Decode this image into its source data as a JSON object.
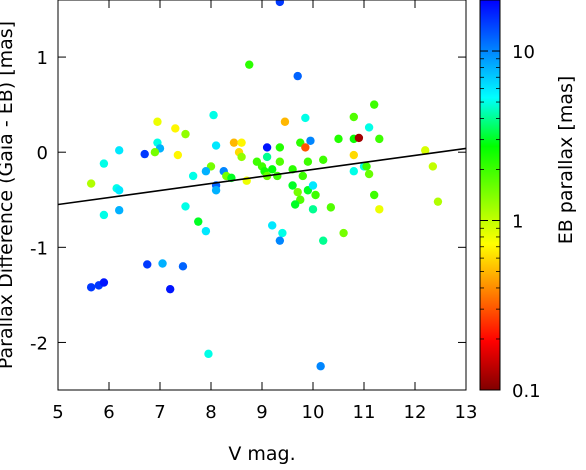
{
  "chart_data": {
    "type": "scatter",
    "xlabel": "V mag.",
    "ylabel": "Parallax Difference (Gaia - EB) [mas]",
    "xlim": [
      5,
      13
    ],
    "ylim": [
      -2.5,
      1.6
    ],
    "xticks": [
      5,
      6,
      7,
      8,
      9,
      10,
      11,
      12,
      13
    ],
    "yticks": [
      -2,
      -1,
      0,
      1
    ],
    "grid": false,
    "colorbar": {
      "label": "EB parallax [mas]",
      "scale": "log",
      "range": [
        0.1,
        20
      ],
      "ticks": [
        0.1,
        1,
        10
      ],
      "tick_labels": [
        "0.1",
        "1",
        "10"
      ],
      "colormap": [
        "#800000",
        "#ff0000",
        "#ff8000",
        "#ffff00",
        "#80ff00",
        "#00ff00",
        "#00ffff",
        "#0080ff",
        "#0000ff"
      ]
    },
    "fit_line": {
      "x": [
        5,
        13
      ],
      "y": [
        -0.55,
        0.04
      ]
    },
    "points": [
      {
        "x": 9.35,
        "y": 1.58,
        "c": 15
      },
      {
        "x": 9.7,
        "y": 0.8,
        "c": 12
      },
      {
        "x": 8.75,
        "y": 0.92,
        "c": 2.2
      },
      {
        "x": 8.05,
        "y": 0.39,
        "c": 5
      },
      {
        "x": 11.2,
        "y": 0.5,
        "c": 2.0
      },
      {
        "x": 10.8,
        "y": 0.37,
        "c": 1.8
      },
      {
        "x": 9.45,
        "y": 0.32,
        "c": 0.5
      },
      {
        "x": 9.85,
        "y": 0.36,
        "c": 5.0
      },
      {
        "x": 11.1,
        "y": 0.26,
        "c": 5.0
      },
      {
        "x": 6.95,
        "y": 0.32,
        "c": 0.8
      },
      {
        "x": 7.3,
        "y": 0.25,
        "c": 0.7
      },
      {
        "x": 7.5,
        "y": 0.19,
        "c": 1.3
      },
      {
        "x": 6.95,
        "y": 0.1,
        "c": 5
      },
      {
        "x": 7.0,
        "y": 0.04,
        "c": 8
      },
      {
        "x": 6.9,
        "y": 0.0,
        "c": 1.5
      },
      {
        "x": 6.2,
        "y": 0.02,
        "c": 6
      },
      {
        "x": 6.7,
        "y": -0.02,
        "c": 15
      },
      {
        "x": 7.35,
        "y": -0.03,
        "c": 0.7
      },
      {
        "x": 5.9,
        "y": -0.12,
        "c": 5
      },
      {
        "x": 5.65,
        "y": -0.33,
        "c": 1.1
      },
      {
        "x": 6.15,
        "y": -0.38,
        "c": 5
      },
      {
        "x": 6.2,
        "y": -0.4,
        "c": 6
      },
      {
        "x": 6.2,
        "y": -0.61,
        "c": 8
      },
      {
        "x": 5.9,
        "y": -0.66,
        "c": 5
      },
      {
        "x": 8.1,
        "y": 0.07,
        "c": 6
      },
      {
        "x": 8.45,
        "y": 0.1,
        "c": 0.5
      },
      {
        "x": 8.6,
        "y": 0.1,
        "c": 0.7
      },
      {
        "x": 8.55,
        "y": 0.0,
        "c": 0.6
      },
      {
        "x": 8.6,
        "y": -0.05,
        "c": 1.3
      },
      {
        "x": 8.7,
        "y": -0.3,
        "c": 0.8
      },
      {
        "x": 8.0,
        "y": -0.15,
        "c": 1.5
      },
      {
        "x": 7.9,
        "y": -0.2,
        "c": 8
      },
      {
        "x": 8.25,
        "y": -0.2,
        "c": 10
      },
      {
        "x": 8.3,
        "y": -0.25,
        "c": 1.5
      },
      {
        "x": 8.4,
        "y": -0.27,
        "c": 3
      },
      {
        "x": 7.65,
        "y": -0.25,
        "c": 5
      },
      {
        "x": 8.1,
        "y": -0.35,
        "c": 12
      },
      {
        "x": 8.1,
        "y": -0.4,
        "c": 8
      },
      {
        "x": 7.5,
        "y": -0.57,
        "c": 5
      },
      {
        "x": 7.75,
        "y": -0.73,
        "c": 3
      },
      {
        "x": 7.9,
        "y": -0.83,
        "c": 6
      },
      {
        "x": 8.9,
        "y": -0.1,
        "c": 2
      },
      {
        "x": 9.0,
        "y": -0.15,
        "c": 2
      },
      {
        "x": 9.05,
        "y": -0.2,
        "c": 2.5
      },
      {
        "x": 9.1,
        "y": -0.25,
        "c": 1.6
      },
      {
        "x": 9.2,
        "y": -0.18,
        "c": 2.8
      },
      {
        "x": 9.1,
        "y": 0.05,
        "c": 18
      },
      {
        "x": 9.1,
        "y": -0.05,
        "c": 4
      },
      {
        "x": 9.35,
        "y": 0.05,
        "c": 2.3
      },
      {
        "x": 9.35,
        "y": -0.1,
        "c": 1.8
      },
      {
        "x": 9.3,
        "y": -0.25,
        "c": 2
      },
      {
        "x": 9.6,
        "y": -0.18,
        "c": 2.2
      },
      {
        "x": 9.6,
        "y": -0.35,
        "c": 3
      },
      {
        "x": 9.7,
        "y": -0.42,
        "c": 1.5
      },
      {
        "x": 9.75,
        "y": -0.5,
        "c": 1.8
      },
      {
        "x": 9.65,
        "y": -0.55,
        "c": 3
      },
      {
        "x": 9.75,
        "y": 0.1,
        "c": 2.2
      },
      {
        "x": 9.85,
        "y": 0.05,
        "c": 0.3
      },
      {
        "x": 9.9,
        "y": -0.1,
        "c": 2
      },
      {
        "x": 9.95,
        "y": 0.12,
        "c": 10
      },
      {
        "x": 9.8,
        "y": -0.25,
        "c": 2
      },
      {
        "x": 9.9,
        "y": -0.4,
        "c": 3
      },
      {
        "x": 10.0,
        "y": -0.35,
        "c": 6
      },
      {
        "x": 10.05,
        "y": -0.45,
        "c": 2
      },
      {
        "x": 10.0,
        "y": -0.6,
        "c": 4
      },
      {
        "x": 10.2,
        "y": -0.08,
        "c": 2
      },
      {
        "x": 10.35,
        "y": -0.58,
        "c": 1.8
      },
      {
        "x": 10.2,
        "y": -0.93,
        "c": 4
      },
      {
        "x": 10.6,
        "y": -0.85,
        "c": 1.5
      },
      {
        "x": 10.5,
        "y": 0.14,
        "c": 2.3
      },
      {
        "x": 10.8,
        "y": 0.14,
        "c": 2.6
      },
      {
        "x": 10.8,
        "y": -0.03,
        "c": 0.6
      },
      {
        "x": 10.9,
        "y": 0.15,
        "c": 0.12
      },
      {
        "x": 11.0,
        "y": -0.15,
        "c": 5
      },
      {
        "x": 11.05,
        "y": -0.15,
        "c": 2
      },
      {
        "x": 10.8,
        "y": -0.2,
        "c": 5
      },
      {
        "x": 11.1,
        "y": -0.23,
        "c": 1.6
      },
      {
        "x": 11.2,
        "y": -0.45,
        "c": 2
      },
      {
        "x": 11.3,
        "y": 0.14,
        "c": 2
      },
      {
        "x": 11.3,
        "y": -0.6,
        "c": 0.8
      },
      {
        "x": 12.2,
        "y": 0.02,
        "c": 0.9
      },
      {
        "x": 12.35,
        "y": -0.15,
        "c": 1.0
      },
      {
        "x": 12.45,
        "y": -0.52,
        "c": 1.1
      },
      {
        "x": 9.2,
        "y": -0.77,
        "c": 6
      },
      {
        "x": 9.4,
        "y": -0.85,
        "c": 5
      },
      {
        "x": 9.35,
        "y": -0.93,
        "c": 10
      },
      {
        "x": 7.95,
        "y": -2.12,
        "c": 5
      },
      {
        "x": 10.15,
        "y": -2.25,
        "c": 10
      },
      {
        "x": 5.65,
        "y": -1.42,
        "c": 15
      },
      {
        "x": 5.8,
        "y": -1.4,
        "c": 15
      },
      {
        "x": 5.9,
        "y": -1.37,
        "c": 18
      },
      {
        "x": 6.75,
        "y": -1.18,
        "c": 15
      },
      {
        "x": 7.05,
        "y": -1.17,
        "c": 8
      },
      {
        "x": 7.2,
        "y": -1.44,
        "c": 18
      },
      {
        "x": 7.45,
        "y": -1.2,
        "c": 12
      }
    ]
  }
}
